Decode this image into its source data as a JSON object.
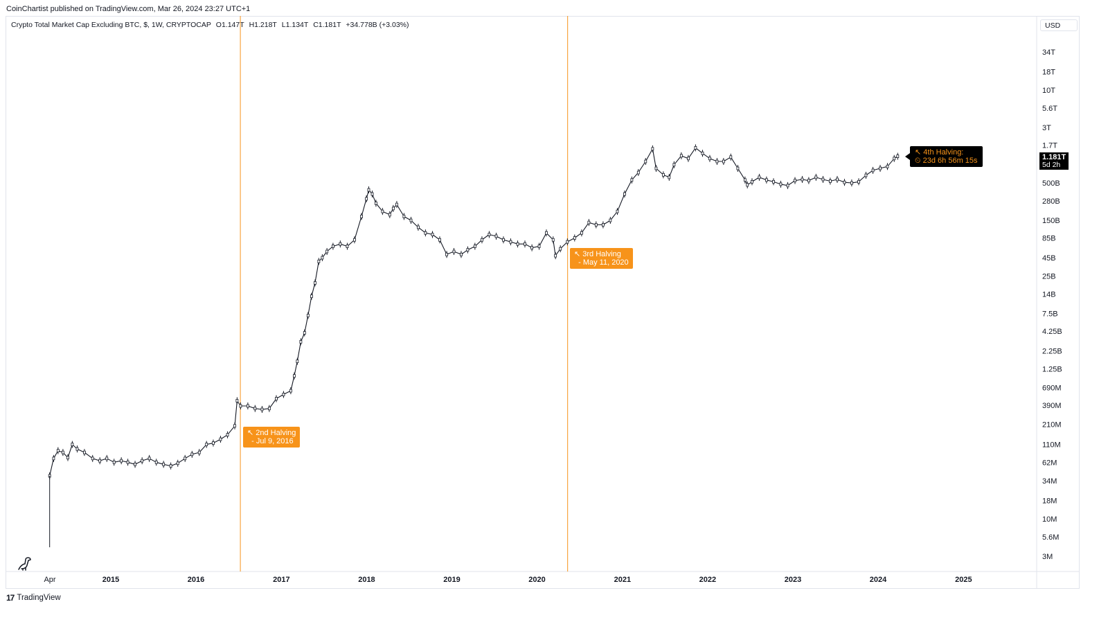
{
  "header": {
    "publisher_line": "CoinChartist published on TradingView.com, Mar 26, 2024 23:27 UTC+1"
  },
  "legend": {
    "symbol": "Crypto Total Market Cap Excluding BTC, $, 1W, CRYPTOCAP",
    "open": "O1.147T",
    "high": "H1.218T",
    "low": "L1.134T",
    "close": "C1.181T",
    "change": "+34.778B (+3.03%)"
  },
  "currency_button": "USD",
  "last_price": {
    "value": "1.181T",
    "countdown": "5d 2h"
  },
  "annotations": {
    "halving2": {
      "line1": "↖ 2nd Halving",
      "line2": "  - Jul 9, 2016",
      "date": "2016-07-09"
    },
    "halving3": {
      "line1": "↖ 3rd Halving",
      "line2": "  - May 11, 2020",
      "date": "2020-05-11"
    },
    "halving4": {
      "line1": "↖ 4th Halving:",
      "line2": "⏲ 23d 6h 56m 15s"
    }
  },
  "brand": {
    "logo": "17",
    "name": "TradingView"
  },
  "colors": {
    "halving_line": "#f7931a",
    "annotation_bg": "#f7931a",
    "candle_stroke": "#131722",
    "axis_text": "#131722",
    "grid_border": "#e0e3eb"
  },
  "icons": {
    "brand_logo": "tradingview-logo-icon",
    "dino": "dinosaur-icon"
  },
  "chart_data": {
    "type": "candlestick-line",
    "title": "Crypto Total Market Cap Excluding BTC, $, 1W, CRYPTOCAP",
    "y_scale": "log",
    "y_unit": "USD",
    "x_ticks": [
      "Apr",
      "2015",
      "2016",
      "2017",
      "2018",
      "2019",
      "2020",
      "2021",
      "2022",
      "2023",
      "2024",
      "2025"
    ],
    "y_ticks": [
      "34T",
      "18T",
      "10T",
      "5.6T",
      "3T",
      "1.7T",
      "500B",
      "280B",
      "150B",
      "85B",
      "45B",
      "25B",
      "14B",
      "7.5B",
      "4.25B",
      "2.25B",
      "1.25B",
      "690M",
      "390M",
      "210M",
      "110M",
      "62M",
      "34M",
      "18M",
      "10M",
      "5.6M",
      "3M"
    ],
    "y_tick_values": [
      34000000000000.0,
      18000000000000.0,
      10000000000000.0,
      5600000000000.0,
      3000000000000.0,
      1700000000000.0,
      500000000000.0,
      280000000000.0,
      150000000000.0,
      85000000000.0,
      45000000000.0,
      25000000000.0,
      14000000000.0,
      7500000000.0,
      4250000000.0,
      2250000000.0,
      1250000000.0,
      690000000.0,
      390000000.0,
      210000000.0,
      110000000.0,
      62000000.0,
      34000000.0,
      18000000.0,
      10000000.0,
      5600000.0,
      3000000.0
    ],
    "halvings": [
      "2016-07-09",
      "2020-05-11"
    ],
    "x_range": [
      "2014-04-01",
      "2025-12-31"
    ],
    "series": [
      {
        "name": "Crypto Total Market Cap Excluding BTC",
        "points": [
          [
            "2014-04-14",
            40000000.0
          ],
          [
            "2014-05-01",
            70000000.0
          ],
          [
            "2014-05-20",
            90000000.0
          ],
          [
            "2014-06-10",
            85000000.0
          ],
          [
            "2014-07-01",
            72000000.0
          ],
          [
            "2014-07-20",
            110000000.0
          ],
          [
            "2014-08-10",
            95000000.0
          ],
          [
            "2014-09-10",
            85000000.0
          ],
          [
            "2014-10-15",
            70000000.0
          ],
          [
            "2014-11-15",
            65000000.0
          ],
          [
            "2014-12-15",
            70000000.0
          ],
          [
            "2015-01-15",
            62000000.0
          ],
          [
            "2015-02-15",
            65000000.0
          ],
          [
            "2015-03-15",
            62000000.0
          ],
          [
            "2015-04-15",
            58000000.0
          ],
          [
            "2015-05-15",
            65000000.0
          ],
          [
            "2015-06-15",
            70000000.0
          ],
          [
            "2015-07-15",
            62000000.0
          ],
          [
            "2015-08-15",
            58000000.0
          ],
          [
            "2015-09-15",
            55000000.0
          ],
          [
            "2015-10-15",
            60000000.0
          ],
          [
            "2015-11-15",
            70000000.0
          ],
          [
            "2015-12-15",
            80000000.0
          ],
          [
            "2016-01-15",
            85000000.0
          ],
          [
            "2016-02-15",
            110000000.0
          ],
          [
            "2016-03-15",
            115000000.0
          ],
          [
            "2016-04-15",
            130000000.0
          ],
          [
            "2016-05-15",
            150000000.0
          ],
          [
            "2016-06-15",
            200000000.0
          ],
          [
            "2016-06-25",
            450000000.0
          ],
          [
            "2016-07-10",
            380000000.0
          ],
          [
            "2016-08-10",
            380000000.0
          ],
          [
            "2016-09-10",
            350000000.0
          ],
          [
            "2016-10-10",
            340000000.0
          ],
          [
            "2016-11-10",
            350000000.0
          ],
          [
            "2016-12-10",
            480000000.0
          ],
          [
            "2017-01-10",
            550000000.0
          ],
          [
            "2017-02-10",
            620000000.0
          ],
          [
            "2017-02-25",
            1000000000.0
          ],
          [
            "2017-03-10",
            1600000000.0
          ],
          [
            "2017-03-25",
            3000000000.0
          ],
          [
            "2017-04-10",
            4000000000.0
          ],
          [
            "2017-04-25",
            7000000000.0
          ],
          [
            "2017-05-10",
            13000000000.0
          ],
          [
            "2017-05-25",
            20000000000.0
          ],
          [
            "2017-06-10",
            40000000000.0
          ],
          [
            "2017-06-25",
            45000000000.0
          ],
          [
            "2017-07-15",
            55000000000.0
          ],
          [
            "2017-08-10",
            65000000000.0
          ],
          [
            "2017-09-10",
            70000000000.0
          ],
          [
            "2017-10-10",
            65000000000.0
          ],
          [
            "2017-11-10",
            80000000000.0
          ],
          [
            "2017-12-10",
            170000000000.0
          ],
          [
            "2017-12-31",
            300000000000.0
          ],
          [
            "2018-01-10",
            400000000000.0
          ],
          [
            "2018-01-25",
            350000000000.0
          ],
          [
            "2018-02-10",
            260000000000.0
          ],
          [
            "2018-03-10",
            200000000000.0
          ],
          [
            "2018-04-10",
            180000000000.0
          ],
          [
            "2018-04-25",
            220000000000.0
          ],
          [
            "2018-05-10",
            250000000000.0
          ],
          [
            "2018-06-10",
            170000000000.0
          ],
          [
            "2018-07-10",
            150000000000.0
          ],
          [
            "2018-08-10",
            120000000000.0
          ],
          [
            "2018-09-10",
            100000000000.0
          ],
          [
            "2018-10-10",
            95000000000.0
          ],
          [
            "2018-11-10",
            80000000000.0
          ],
          [
            "2018-12-10",
            50000000000.0
          ],
          [
            "2019-01-10",
            55000000000.0
          ],
          [
            "2019-02-10",
            50000000000.0
          ],
          [
            "2019-03-10",
            58000000000.0
          ],
          [
            "2019-04-10",
            65000000000.0
          ],
          [
            "2019-05-10",
            80000000000.0
          ],
          [
            "2019-06-10",
            95000000000.0
          ],
          [
            "2019-07-10",
            90000000000.0
          ],
          [
            "2019-08-10",
            80000000000.0
          ],
          [
            "2019-09-10",
            75000000000.0
          ],
          [
            "2019-10-10",
            70000000000.0
          ],
          [
            "2019-11-10",
            70000000000.0
          ],
          [
            "2019-12-10",
            62000000000.0
          ],
          [
            "2020-01-10",
            65000000000.0
          ],
          [
            "2020-02-10",
            100000000000.0
          ],
          [
            "2020-03-10",
            80000000000.0
          ],
          [
            "2020-03-20",
            48000000000.0
          ],
          [
            "2020-04-10",
            60000000000.0
          ],
          [
            "2020-05-10",
            75000000000.0
          ],
          [
            "2020-06-10",
            85000000000.0
          ],
          [
            "2020-07-10",
            100000000000.0
          ],
          [
            "2020-08-10",
            140000000000.0
          ],
          [
            "2020-09-10",
            130000000000.0
          ],
          [
            "2020-10-10",
            130000000000.0
          ],
          [
            "2020-11-10",
            150000000000.0
          ],
          [
            "2020-12-10",
            200000000000.0
          ],
          [
            "2021-01-10",
            350000000000.0
          ],
          [
            "2021-02-10",
            550000000000.0
          ],
          [
            "2021-03-10",
            700000000000.0
          ],
          [
            "2021-04-10",
            1000000000000.0
          ],
          [
            "2021-05-10",
            1500000000000.0
          ],
          [
            "2021-05-25",
            800000000000.0
          ],
          [
            "2021-06-25",
            650000000000.0
          ],
          [
            "2021-07-20",
            600000000000.0
          ],
          [
            "2021-08-10",
            900000000000.0
          ],
          [
            "2021-09-10",
            1200000000000.0
          ],
          [
            "2021-10-10",
            1100000000000.0
          ],
          [
            "2021-11-10",
            1550000000000.0
          ],
          [
            "2021-12-10",
            1300000000000.0
          ],
          [
            "2022-01-10",
            1100000000000.0
          ],
          [
            "2022-02-10",
            1000000000000.0
          ],
          [
            "2022-03-10",
            1000000000000.0
          ],
          [
            "2022-04-10",
            1150000000000.0
          ],
          [
            "2022-05-10",
            800000000000.0
          ],
          [
            "2022-06-10",
            550000000000.0
          ],
          [
            "2022-06-20",
            470000000000.0
          ],
          [
            "2022-07-10",
            520000000000.0
          ],
          [
            "2022-08-10",
            600000000000.0
          ],
          [
            "2022-09-10",
            550000000000.0
          ],
          [
            "2022-10-10",
            520000000000.0
          ],
          [
            "2022-11-10",
            480000000000.0
          ],
          [
            "2022-12-10",
            460000000000.0
          ],
          [
            "2023-01-10",
            540000000000.0
          ],
          [
            "2023-02-10",
            560000000000.0
          ],
          [
            "2023-03-10",
            540000000000.0
          ],
          [
            "2023-04-10",
            600000000000.0
          ],
          [
            "2023-05-10",
            560000000000.0
          ],
          [
            "2023-06-10",
            530000000000.0
          ],
          [
            "2023-07-10",
            560000000000.0
          ],
          [
            "2023-08-10",
            510000000000.0
          ],
          [
            "2023-09-10",
            500000000000.0
          ],
          [
            "2023-10-10",
            520000000000.0
          ],
          [
            "2023-11-10",
            640000000000.0
          ],
          [
            "2023-12-10",
            750000000000.0
          ],
          [
            "2024-01-10",
            800000000000.0
          ],
          [
            "2024-02-10",
            850000000000.0
          ],
          [
            "2024-03-10",
            1100000000000.0
          ],
          [
            "2024-03-25",
            1181000000000.0
          ]
        ]
      }
    ]
  }
}
